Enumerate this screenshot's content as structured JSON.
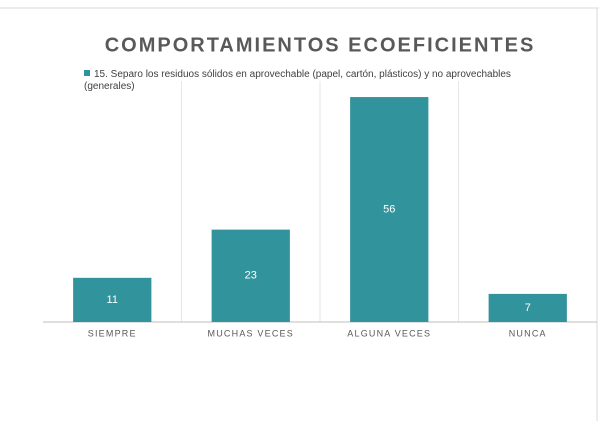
{
  "chart_data": {
    "type": "bar",
    "title": "COMPORTAMIENTOS ECOEFICIENTES",
    "categories": [
      "SIEMPRE",
      "MUCHAS VECES",
      "ALGUNA VECES",
      "NUNCA"
    ],
    "series": [
      {
        "name": "15. Separo los residuos sólidos en aprovechable (papel, cartón, plásticos) y no aprovechables (generales)",
        "color": "#31939b",
        "values": [
          11,
          23,
          56,
          7
        ]
      }
    ],
    "ylim": [
      0,
      60
    ],
    "legend": "top-left"
  }
}
